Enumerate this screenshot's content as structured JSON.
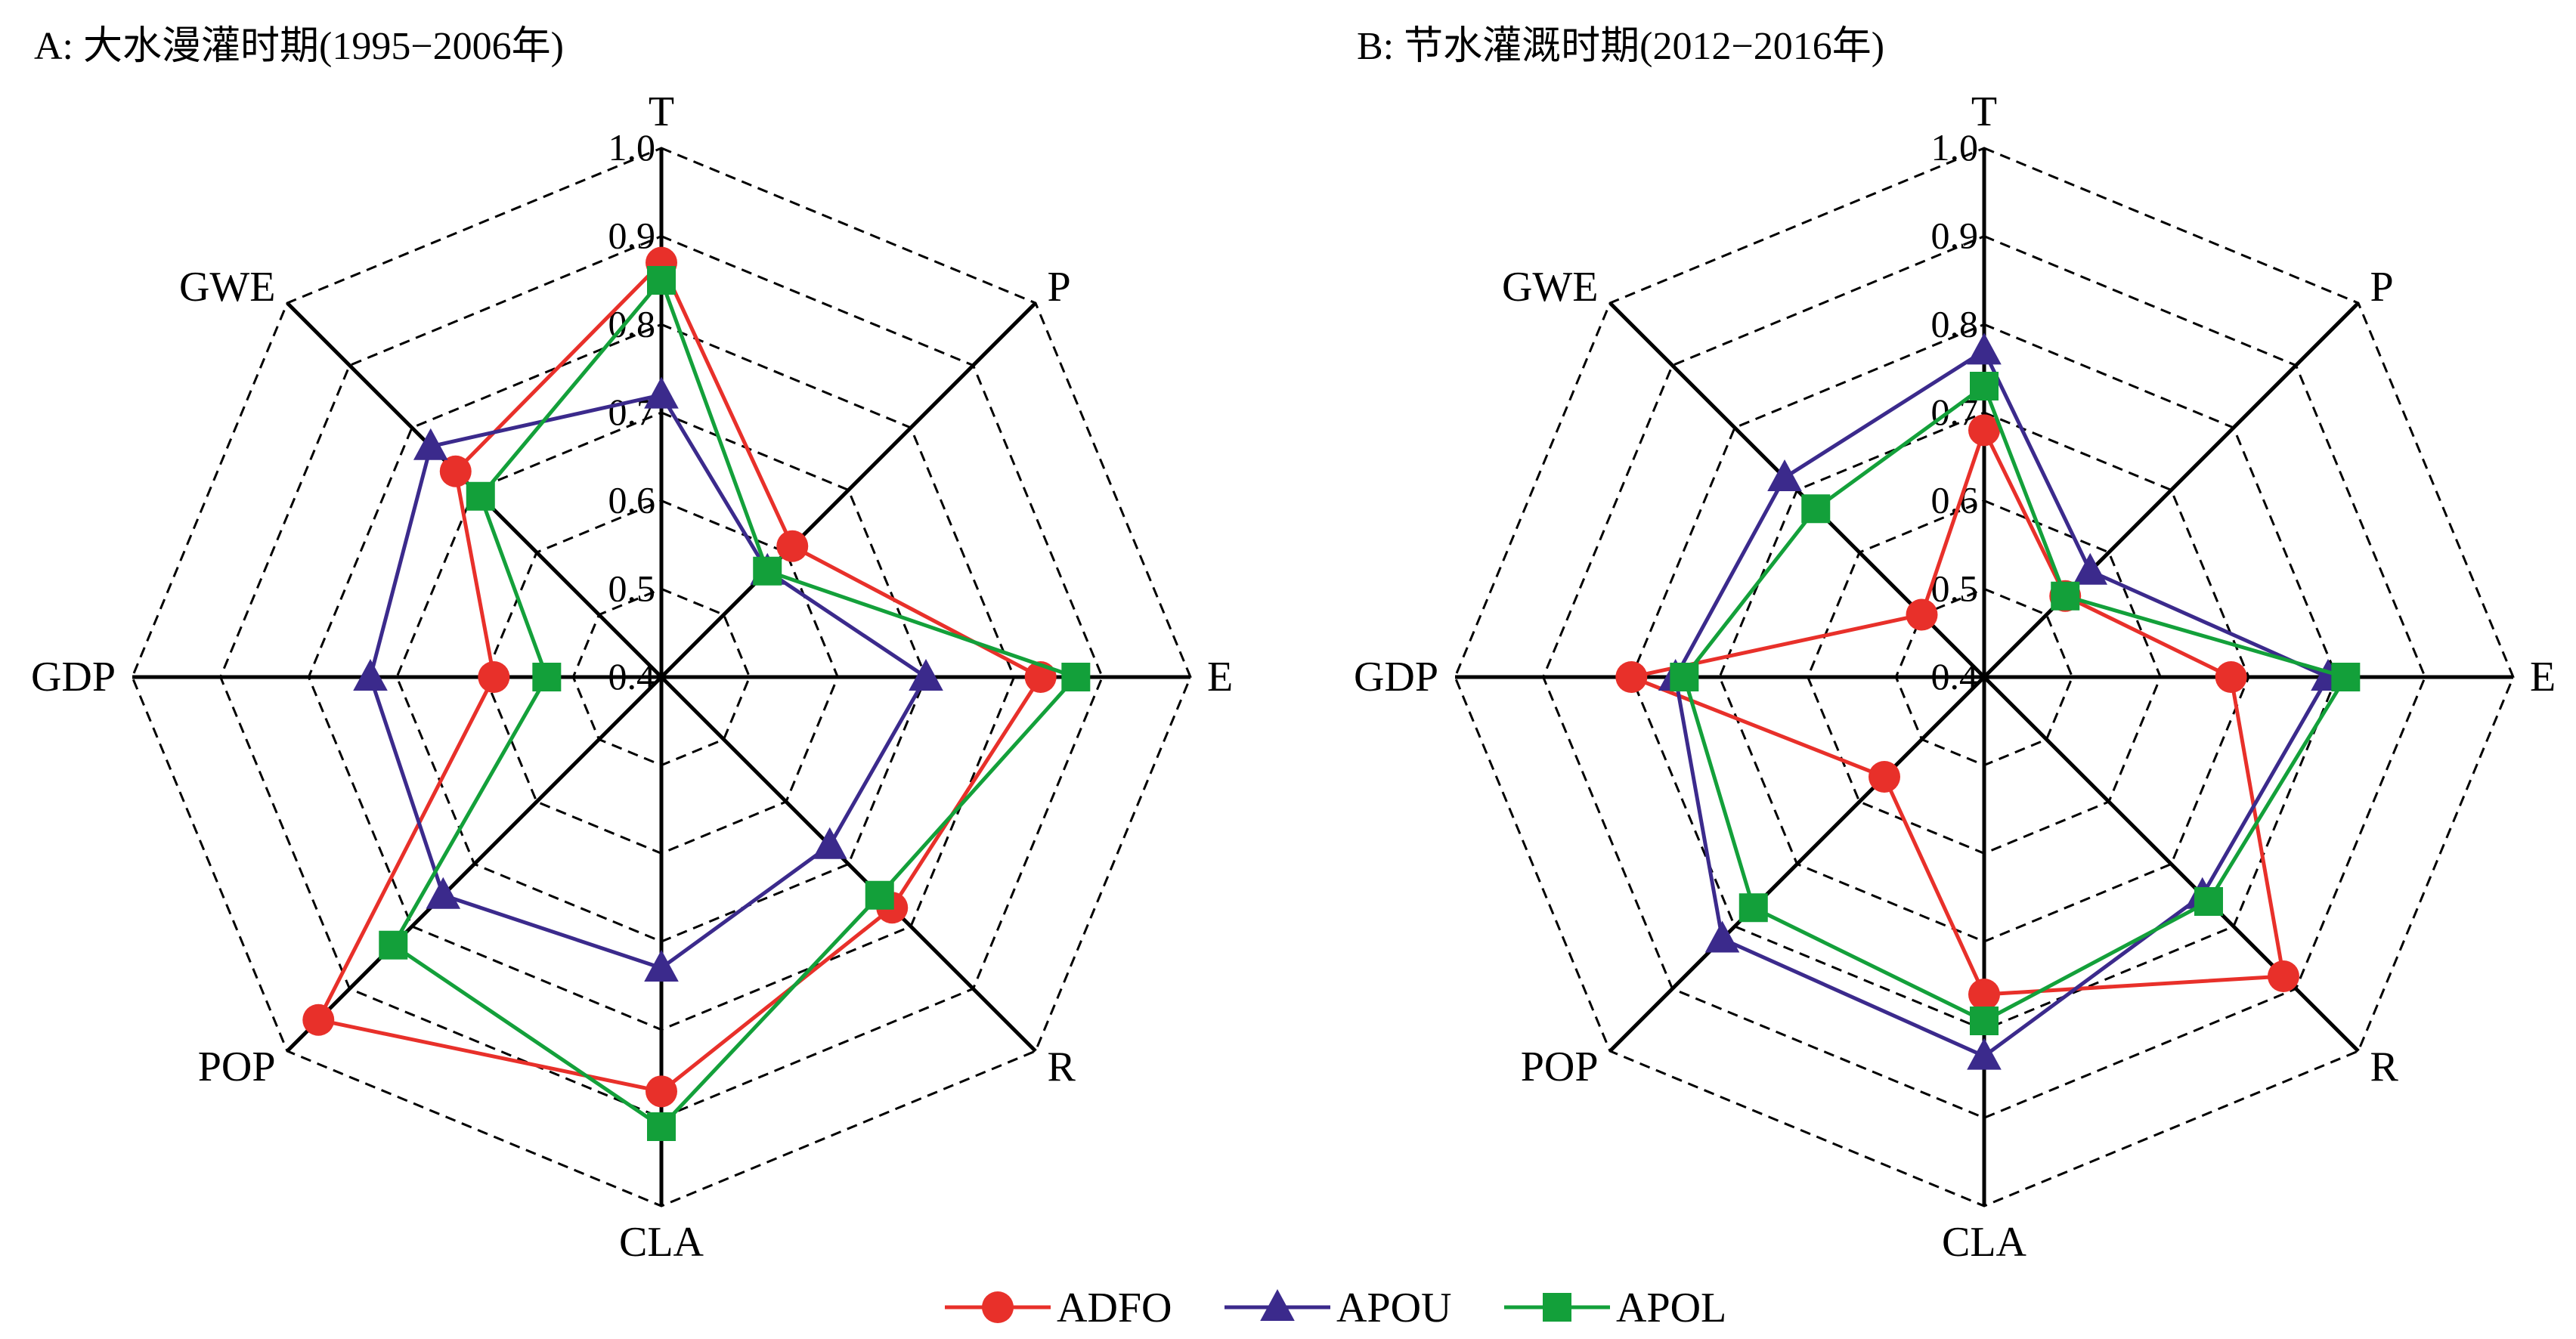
{
  "chart_data": [
    {
      "type": "radar",
      "title": "A: 大水漫灌时期(1995−2006年)",
      "axes": [
        "T",
        "P",
        "E",
        "R",
        "CLA",
        "POP",
        "GDP",
        "GWE"
      ],
      "range": [
        0.4,
        1.0
      ],
      "ticks": [
        "0.4",
        "0.5",
        "0.6",
        "0.7",
        "0.8",
        "0.9",
        "1.0"
      ],
      "tick_values": [
        0.4,
        0.5,
        0.6,
        0.7,
        0.8,
        0.9,
        1.0
      ],
      "grid": "dashed octagons",
      "series": [
        {
          "name": "ADFO",
          "values": [
            0.87,
            0.61,
            0.83,
            0.77,
            0.87,
            0.95,
            0.59,
            0.73
          ]
        },
        {
          "name": "APOU",
          "values": [
            0.72,
            0.57,
            0.7,
            0.67,
            0.73,
            0.75,
            0.73,
            0.77
          ]
        },
        {
          "name": "APOL",
          "values": [
            0.85,
            0.57,
            0.87,
            0.75,
            0.91,
            0.83,
            0.53,
            0.69
          ]
        }
      ]
    },
    {
      "type": "radar",
      "title": "B: 节水灌溉时期(2012−2016年)",
      "axes": [
        "T",
        "P",
        "E",
        "R",
        "CLA",
        "POP",
        "GDP",
        "GWE"
      ],
      "range": [
        0.4,
        1.0
      ],
      "ticks": [
        "0.4",
        "0.5",
        "0.6",
        "0.7",
        "0.8",
        "0.9",
        "1.0"
      ],
      "tick_values": [
        0.4,
        0.5,
        0.6,
        0.7,
        0.8,
        0.9,
        1.0
      ],
      "grid": "dashed octagons",
      "series": [
        {
          "name": "ADFO",
          "values": [
            0.68,
            0.53,
            0.68,
            0.88,
            0.76,
            0.56,
            0.8,
            0.5
          ]
        },
        {
          "name": "APOU",
          "values": [
            0.77,
            0.57,
            0.79,
            0.75,
            0.83,
            0.82,
            0.75,
            0.72
          ]
        },
        {
          "name": "APOL",
          "values": [
            0.73,
            0.53,
            0.81,
            0.76,
            0.79,
            0.77,
            0.74,
            0.67
          ]
        }
      ]
    }
  ],
  "legend": [
    {
      "name": "ADFO",
      "color": "#e8302a",
      "marker": "circle"
    },
    {
      "name": "APOU",
      "color": "#3b2a8c",
      "marker": "triangle"
    },
    {
      "name": "APOL",
      "color": "#13a03a",
      "marker": "square"
    }
  ],
  "legend_position": "bottom-center"
}
